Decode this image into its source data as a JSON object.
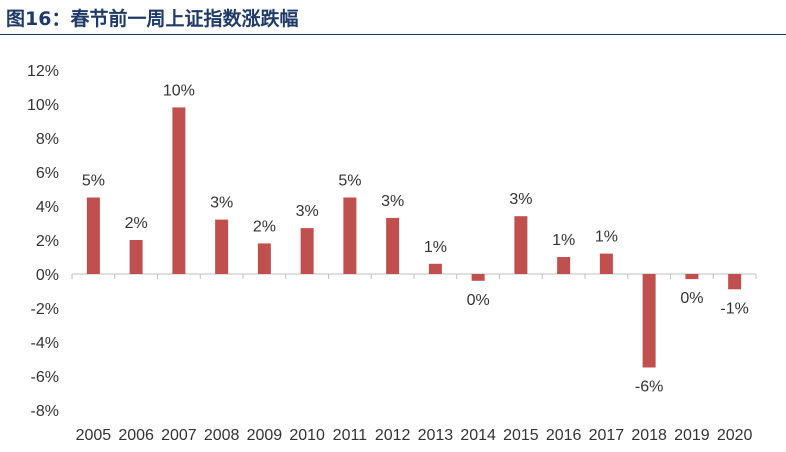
{
  "header": {
    "title": "图16：春节前一周上证指数涨跌幅"
  },
  "chart_data": {
    "type": "bar",
    "title": "图16：春节前一周上证指数涨跌幅",
    "xlabel": "",
    "ylabel": "",
    "categories": [
      "2005",
      "2006",
      "2007",
      "2008",
      "2009",
      "2010",
      "2011",
      "2012",
      "2013",
      "2014",
      "2015",
      "2016",
      "2017",
      "2018",
      "2019",
      "2020"
    ],
    "values": [
      4.5,
      2.0,
      9.8,
      3.2,
      1.8,
      2.7,
      4.5,
      3.3,
      0.6,
      -0.4,
      3.4,
      1.0,
      1.2,
      -5.5,
      -0.3,
      -0.9
    ],
    "data_labels": [
      "5%",
      "2%",
      "10%",
      "3%",
      "2%",
      "3%",
      "5%",
      "3%",
      "1%",
      "0%",
      "3%",
      "1%",
      "1%",
      "-6%",
      "0%",
      "-1%"
    ],
    "ylim": [
      -8,
      12
    ],
    "yticks": [
      12,
      10,
      8,
      6,
      4,
      2,
      0,
      -2,
      -4,
      -6,
      -8
    ],
    "ytick_labels": [
      "12%",
      "10%",
      "8%",
      "6%",
      "4%",
      "2%",
      "0%",
      "-2%",
      "-4%",
      "-6%",
      "-8%"
    ],
    "bar_color": "#c0504d",
    "grid": false,
    "legend": "none"
  }
}
